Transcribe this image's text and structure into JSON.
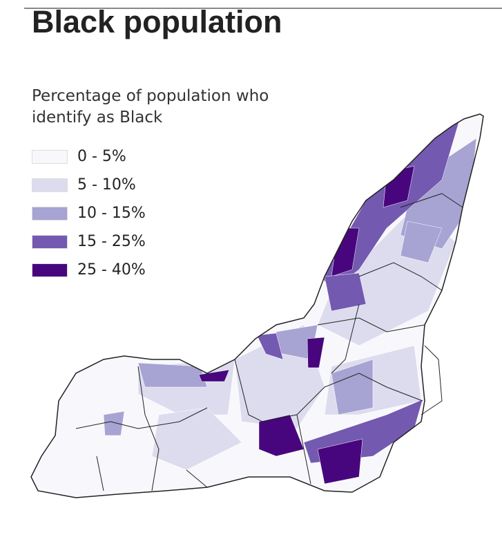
{
  "title": "Black population",
  "legend": {
    "title": "Percentage of population who identify as Black",
    "items": [
      {
        "label": "0 - 5%",
        "color": "#f8f8fc"
      },
      {
        "label": "5 - 10%",
        "color": "#dcdcee"
      },
      {
        "label": "10 - 15%",
        "color": "#a7a3d3"
      },
      {
        "label": "15 - 25%",
        "color": "#7459b0"
      },
      {
        "label": "25 - 40%",
        "color": "#48067e"
      }
    ]
  }
}
